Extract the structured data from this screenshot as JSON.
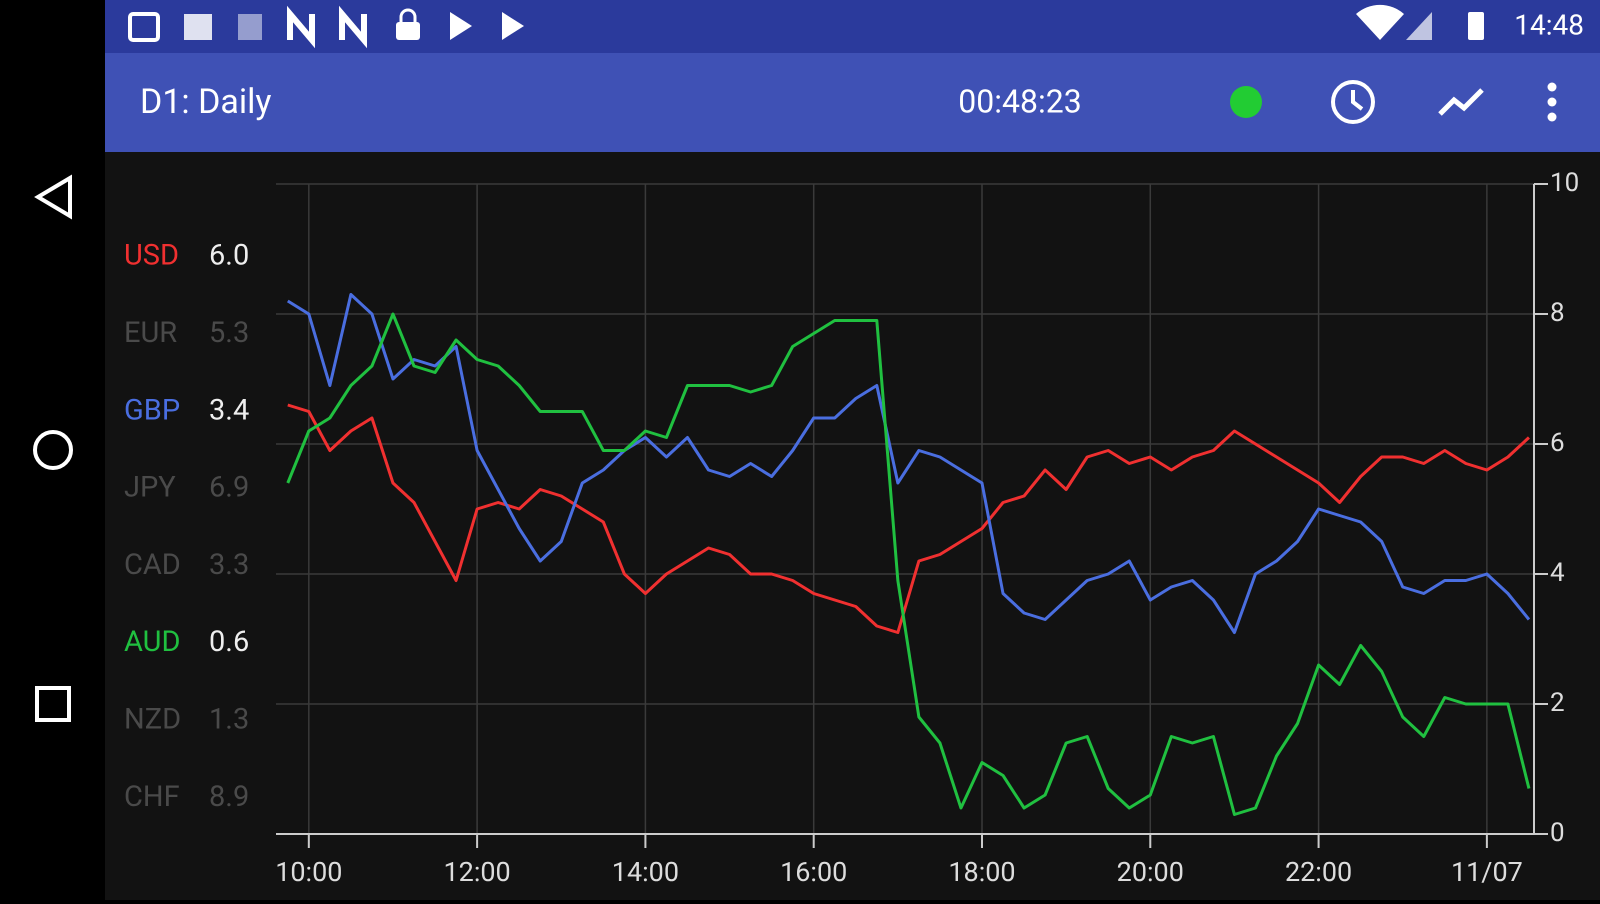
{
  "status_bar": {
    "time": "14:48"
  },
  "toolbar": {
    "title": "D1: Daily",
    "timer": "00:48:23"
  },
  "chart_data": {
    "type": "line",
    "legend": [
      {
        "name": "USD",
        "value": "6.0",
        "color": "#f03030"
      },
      {
        "name": "EUR",
        "value": "5.3",
        "color": "#4a4a4a"
      },
      {
        "name": "GBP",
        "value": "3.4",
        "color": "#4a6ee0"
      },
      {
        "name": "JPY",
        "value": "6.9",
        "color": "#4a4a4a"
      },
      {
        "name": "CAD",
        "value": "3.3",
        "color": "#4a4a4a"
      },
      {
        "name": "AUD",
        "value": "0.6",
        "color": "#20c040"
      },
      {
        "name": "NZD",
        "value": "1.3",
        "color": "#4a4a4a"
      },
      {
        "name": "CHF",
        "value": "8.9",
        "color": "#4a4a4a"
      }
    ],
    "x": [
      9.75,
      10,
      10.25,
      10.5,
      10.75,
      11,
      11.25,
      11.5,
      11.75,
      12,
      12.25,
      12.5,
      12.75,
      13,
      13.25,
      13.5,
      13.75,
      14,
      14.25,
      14.5,
      14.75,
      15,
      15.25,
      15.5,
      15.75,
      16,
      16.25,
      16.5,
      16.75,
      17,
      17.25,
      17.5,
      17.75,
      18,
      18.25,
      18.5,
      18.75,
      19,
      19.25,
      19.5,
      19.75,
      20,
      20.25,
      20.5,
      20.75,
      21,
      21.25,
      21.5,
      21.75,
      22,
      22.25,
      22.5,
      22.75,
      23,
      23.25,
      23.5,
      23.75,
      24,
      24.25,
      24.5
    ],
    "series": [
      {
        "color": "#f03030",
        "values": [
          6.6,
          6.5,
          5.9,
          6.2,
          6.4,
          5.4,
          5.1,
          4.5,
          3.9,
          5.0,
          5.1,
          5.0,
          5.3,
          5.2,
          5.0,
          4.8,
          4.0,
          3.7,
          4.0,
          4.2,
          4.4,
          4.3,
          4.0,
          4.0,
          3.9,
          3.7,
          3.6,
          3.5,
          3.2,
          3.1,
          4.2,
          4.3,
          4.5,
          4.7,
          5.1,
          5.2,
          5.6,
          5.3,
          5.8,
          5.9,
          5.7,
          5.8,
          5.6,
          5.8,
          5.9,
          6.2,
          6.0,
          5.8,
          5.6,
          5.4,
          5.1,
          5.5,
          5.8,
          5.8,
          5.7,
          5.9,
          5.7,
          5.6,
          5.8,
          6.1
        ]
      },
      {
        "color": "#4a6ee0",
        "values": [
          8.2,
          8.0,
          6.9,
          8.3,
          8.0,
          7.0,
          7.3,
          7.2,
          7.5,
          5.9,
          5.3,
          4.7,
          4.2,
          4.5,
          5.4,
          5.6,
          5.9,
          6.1,
          5.8,
          6.1,
          5.6,
          5.5,
          5.7,
          5.5,
          5.9,
          6.4,
          6.4,
          6.7,
          6.9,
          5.4,
          5.9,
          5.8,
          5.6,
          5.4,
          3.7,
          3.4,
          3.3,
          3.6,
          3.9,
          4.0,
          4.2,
          3.6,
          3.8,
          3.9,
          3.6,
          3.1,
          4.0,
          4.2,
          4.5,
          5.0,
          4.9,
          4.8,
          4.5,
          3.8,
          3.7,
          3.9,
          3.9,
          4.0,
          3.7,
          3.3
        ]
      },
      {
        "color": "#20c040",
        "values": [
          5.4,
          6.2,
          6.4,
          6.9,
          7.2,
          8.0,
          7.2,
          7.1,
          7.6,
          7.3,
          7.2,
          6.9,
          6.5,
          6.5,
          6.5,
          5.9,
          5.9,
          6.2,
          6.1,
          6.9,
          6.9,
          6.9,
          6.8,
          6.9,
          7.5,
          7.7,
          7.9,
          7.9,
          7.9,
          3.9,
          1.8,
          1.4,
          0.4,
          1.1,
          0.9,
          0.4,
          0.6,
          1.4,
          1.5,
          0.7,
          0.4,
          0.6,
          1.5,
          1.4,
          1.5,
          0.3,
          0.4,
          1.2,
          1.7,
          2.6,
          2.3,
          2.9,
          2.5,
          1.8,
          1.5,
          2.1,
          2.0,
          2.0,
          2.0,
          0.7
        ]
      }
    ],
    "xlim": [
      9.61,
      24.56
    ],
    "xticks": [
      {
        "value": 10,
        "label": "10:00"
      },
      {
        "value": 12,
        "label": "12:00"
      },
      {
        "value": 14,
        "label": "14:00"
      },
      {
        "value": 16,
        "label": "16:00"
      },
      {
        "value": 18,
        "label": "18:00"
      },
      {
        "value": 20,
        "label": "20:00"
      },
      {
        "value": 22,
        "label": "22:00"
      },
      {
        "value": 24,
        "label": "11/07"
      }
    ],
    "ylim": [
      0,
      10
    ],
    "yticks": [
      0,
      2,
      4,
      6,
      8,
      10
    ],
    "grid": true
  }
}
